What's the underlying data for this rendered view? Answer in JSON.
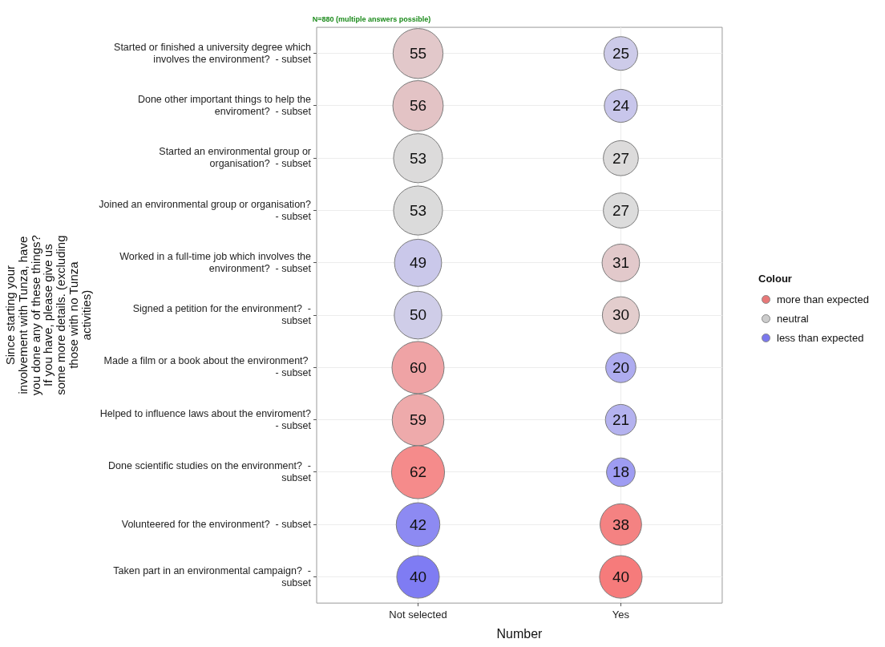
{
  "chart_data": {
    "type": "heatmap",
    "title": "N=880 (multiple answers possible)",
    "xlabel": "Number",
    "ylabel": "Since starting your involvement with Tunza, have you done any of these things? If you have, please give us some more details. (excluding those with no Tunza activities)",
    "legend_title": "Colour",
    "grid": true,
    "data_labels": true,
    "annotations": [
      "more than expected",
      "neutral",
      "less than expected"
    ],
    "categories": [
      "Not selected",
      "Yes"
    ],
    "y_categories": [
      "Started or finished a university degree which involves the environment?  - subset",
      "Done other important things to help the enviroment?  - subset",
      "Started an environmental group or organisation?  - subset",
      "Joined an environmental group or organisation?  - subset",
      "Worked in a full-time job which involves the environment?  - subset",
      "Signed a petition for the environment?  - subset",
      "Made a film or a book about the environment?  - subset",
      "Helped to influence laws about the enviroment?  - subset",
      "Done scientific studies on the environment?  - subset",
      "Volunteered for the environment?  - subset",
      "Taken part in an environmental campaign?  - subset"
    ],
    "cells": [
      [
        55,
        25
      ],
      [
        56,
        24
      ],
      [
        53,
        27
      ],
      [
        53,
        27
      ],
      [
        49,
        31
      ],
      [
        50,
        30
      ],
      [
        60,
        20
      ],
      [
        59,
        21
      ],
      [
        62,
        18
      ],
      [
        42,
        38
      ],
      [
        40,
        40
      ]
    ],
    "colors": [
      [
        "#e2c8ca",
        "#cdcbe9"
      ],
      [
        "#e3c3c5",
        "#c8c6eb"
      ],
      [
        "#dcdbdb",
        "#dcdbdb"
      ],
      [
        "#dbdbdb",
        "#dcdcdc"
      ],
      [
        "#cac8ea",
        "#e2c9cb"
      ],
      [
        "#cfcde8",
        "#e3cdcd"
      ],
      [
        "#efa3a5",
        "#aeacf0"
      ],
      [
        "#eeaaab",
        "#b4b2ef"
      ],
      [
        "#f58b8b",
        "#9e9cf2"
      ],
      [
        "#8d8af2",
        "#f48282"
      ],
      [
        "#7f7cf3",
        "#f67b7b"
      ]
    ]
  }
}
